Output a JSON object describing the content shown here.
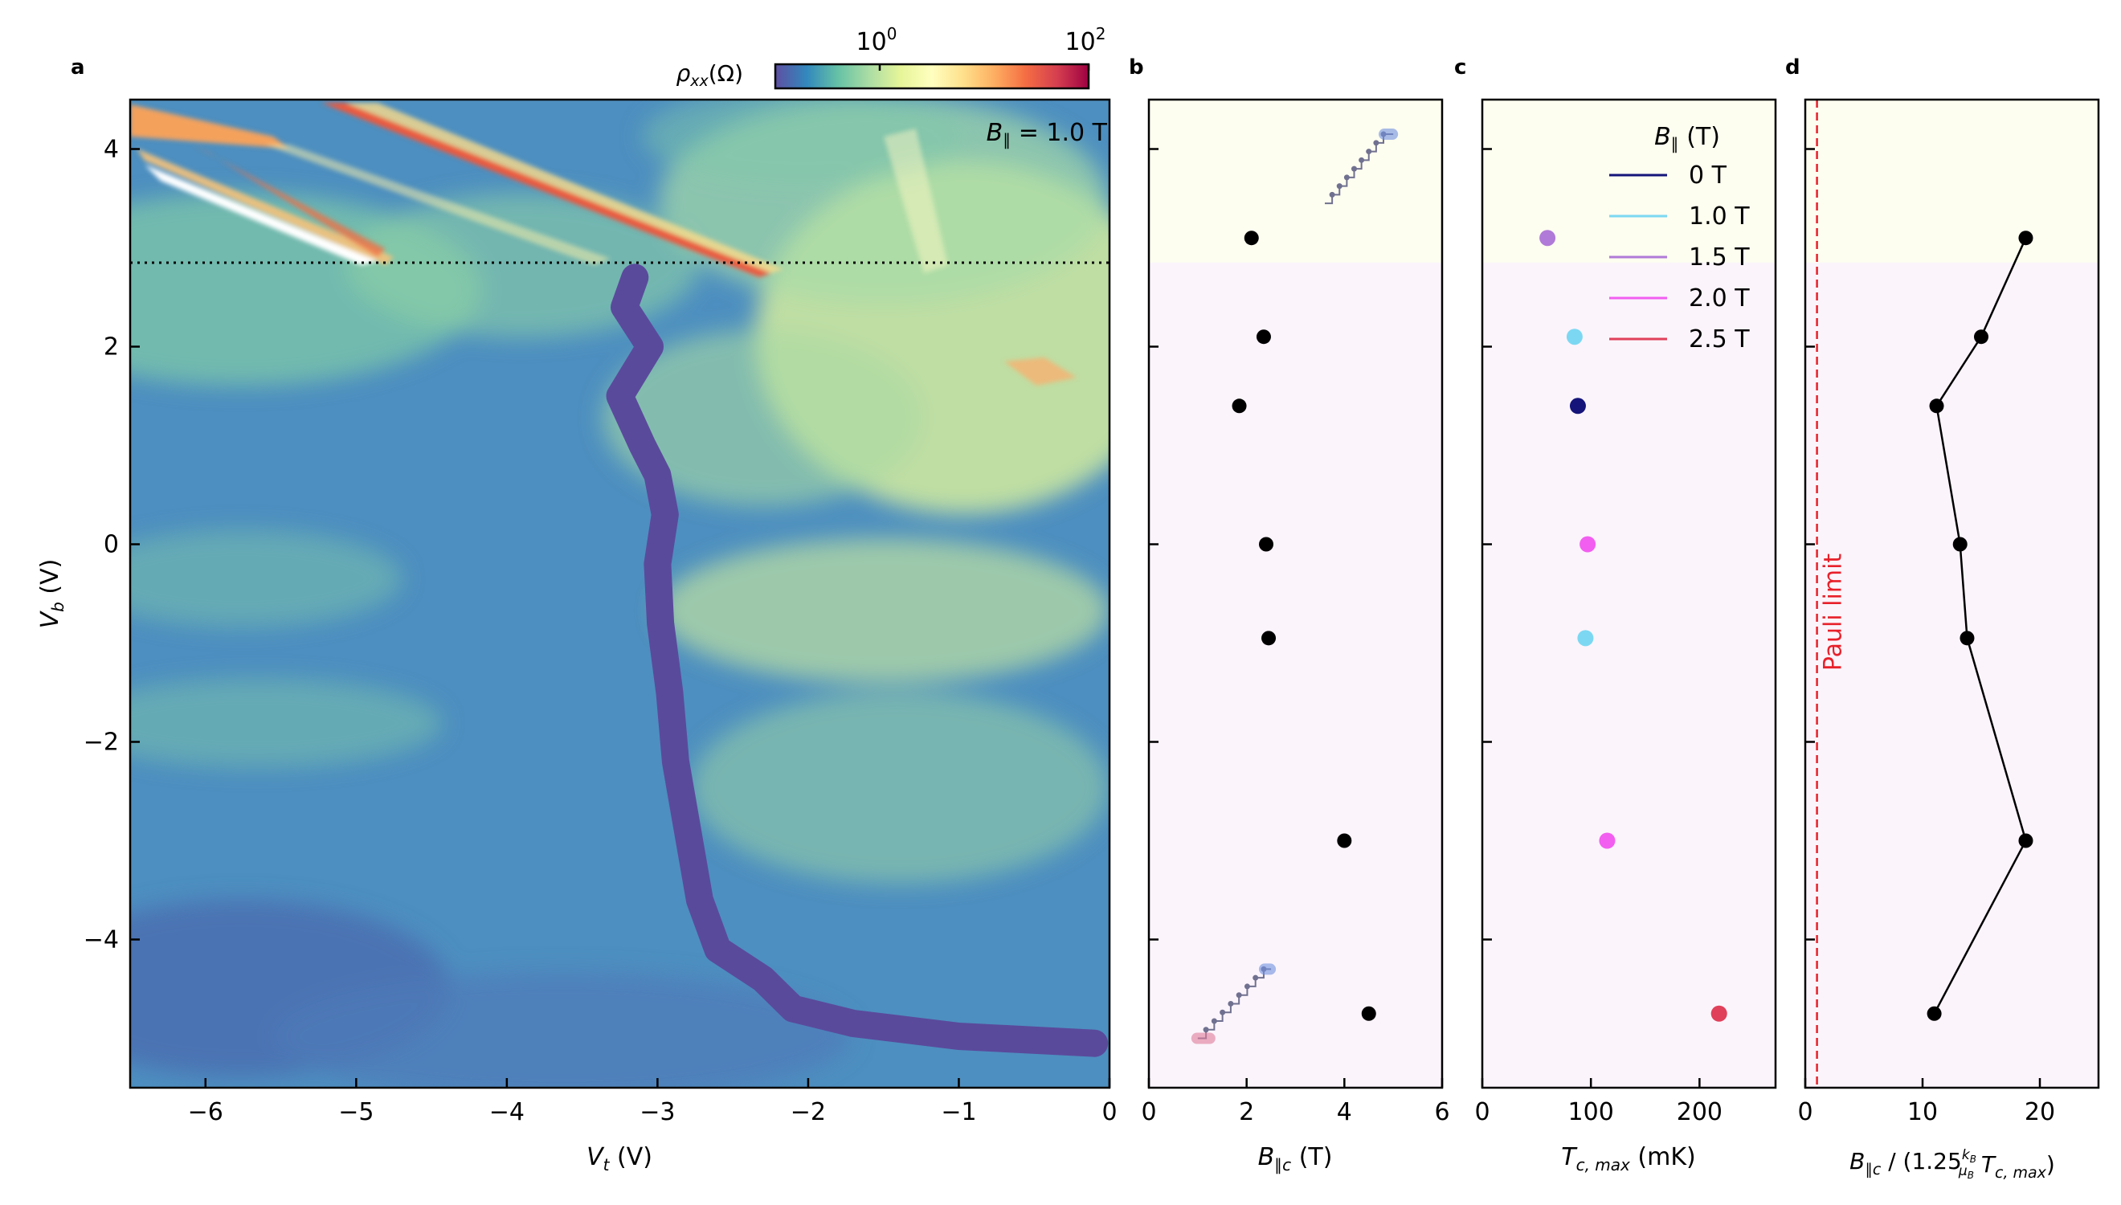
{
  "figure": {
    "panel_labels": [
      "a",
      "b",
      "c",
      "d"
    ],
    "colorbar": {
      "label": "ρ",
      "label_sub": "xx",
      "label_unit": "(Ω)",
      "tick_base": "10",
      "ticks": [
        {
          "exp": "0",
          "value": 1
        },
        {
          "exp": "2",
          "value": 100
        }
      ],
      "range_log10": [
        -1,
        2
      ],
      "colormap": [
        "#5e4fa2",
        "#3288bd",
        "#66c2a5",
        "#abdda4",
        "#e6f598",
        "#ffffbf",
        "#fee08b",
        "#fdae61",
        "#f46d43",
        "#d53e4f",
        "#9e0142"
      ]
    },
    "annotation": {
      "symbol": "B",
      "sub": "∥",
      "text": " = 1.0 T"
    },
    "shading": {
      "upper_color": "#fdfdf0",
      "lower_color": "#fbf4fb",
      "boundary_vb": 2.85
    }
  },
  "chart_data": [
    {
      "panel": "a",
      "type": "heatmap",
      "xlabel": "V",
      "xlabel_sub": "t",
      "xlabel_unit": " (V)",
      "ylabel": "V",
      "ylabel_sub": "b",
      "ylabel_unit": " (V)",
      "xlim": [
        -6.5,
        0
      ],
      "ylim": [
        -5.5,
        4.5
      ],
      "xticks": [
        -6,
        -5,
        -4,
        -3,
        -2,
        -1,
        0
      ],
      "xtick_labels": [
        "−6",
        "−5",
        "−4",
        "−3",
        "−2",
        "−1",
        "0"
      ],
      "yticks": [
        -4,
        -2,
        0,
        2,
        4
      ],
      "ytick_labels": [
        "−4",
        "−2",
        "0",
        "2",
        "4"
      ],
      "dotted_line_vb": 2.85,
      "superconducting_channel": [
        [
          -3.15,
          2.7
        ],
        [
          -3.22,
          2.4
        ],
        [
          -3.05,
          2.0
        ],
        [
          -3.25,
          1.5
        ],
        [
          -3.1,
          1.0
        ],
        [
          -3.0,
          0.7
        ],
        [
          -2.95,
          0.3
        ],
        [
          -3.0,
          -0.2
        ],
        [
          -2.98,
          -0.8
        ],
        [
          -2.92,
          -1.5
        ],
        [
          -2.88,
          -2.2
        ],
        [
          -2.8,
          -2.9
        ],
        [
          -2.72,
          -3.6
        ],
        [
          -2.6,
          -4.1
        ],
        [
          -2.3,
          -4.4
        ],
        [
          -2.1,
          -4.7
        ],
        [
          -1.7,
          -4.85
        ],
        [
          -1.0,
          -4.98
        ],
        [
          -0.1,
          -5.05
        ]
      ]
    },
    {
      "panel": "b",
      "type": "scatter",
      "xlabel": "B",
      "xlabel_sub": "∥c",
      "xlabel_unit": " (T)",
      "xlim": [
        0,
        6
      ],
      "xticks": [
        0,
        2,
        4,
        6
      ],
      "xtick_labels": [
        "0",
        "2",
        "4",
        "6"
      ],
      "ylim": [
        -5.5,
        4.5
      ],
      "points": [
        {
          "x": 2.1,
          "y": 3.1
        },
        {
          "x": 2.35,
          "y": 2.1
        },
        {
          "x": 1.85,
          "y": 1.4
        },
        {
          "x": 2.4,
          "y": 0.0
        },
        {
          "x": 2.45,
          "y": -0.95
        },
        {
          "x": 4.0,
          "y": -3.0
        },
        {
          "x": 4.5,
          "y": -4.75
        }
      ],
      "insets": [
        {
          "x0": 3.6,
          "y0": 3.45,
          "x1": 4.8,
          "y1": 4.15,
          "end_x": 5.0,
          "end_y": 4.15,
          "end_color": "#6f8fe0"
        },
        {
          "x0": 1.0,
          "y0": -5.0,
          "x1": 2.35,
          "y1": -4.3,
          "end_x": 2.5,
          "end_y": -4.3,
          "end_color": "#6f8fe0",
          "start_color": "#e07a9a"
        }
      ]
    },
    {
      "panel": "c",
      "type": "scatter",
      "xlabel": "T",
      "xlabel_sub": "c, max",
      "xlabel_unit": " (mK)",
      "xlim": [
        0,
        270
      ],
      "xticks": [
        0,
        100,
        200
      ],
      "xtick_labels": [
        "0",
        "100",
        "200"
      ],
      "ylim": [
        -5.5,
        4.5
      ],
      "legend_title": "B",
      "legend_title_sub": "∥",
      "legend_title_unit": " (T)",
      "series": [
        {
          "name": "0 T",
          "color": "#14147a"
        },
        {
          "name": "1.0 T",
          "color": "#7cd8f2"
        },
        {
          "name": "1.5 T",
          "color": "#b07ad8"
        },
        {
          "name": "2.0 T",
          "color": "#f25ef0"
        },
        {
          "name": "2.5 T",
          "color": "#e0405a"
        }
      ],
      "points": [
        {
          "x": 60,
          "y": 3.1,
          "series": 2
        },
        {
          "x": 85,
          "y": 2.1,
          "series": 1
        },
        {
          "x": 88,
          "y": 1.4,
          "series": 0
        },
        {
          "x": 97,
          "y": 0.0,
          "series": 3
        },
        {
          "x": 95,
          "y": -0.95,
          "series": 1
        },
        {
          "x": 115,
          "y": -3.0,
          "series": 3
        },
        {
          "x": 218,
          "y": -4.75,
          "series": 4
        }
      ]
    },
    {
      "panel": "d",
      "type": "line",
      "xlabel_parts": {
        "b": "B",
        "b_sub": "∥c",
        "mid": " / (1.25",
        "frac_num": "k",
        "frac_num_sub": "B",
        "frac_den": "μ",
        "frac_den_sub": "B",
        "t": " T",
        "t_sub": "c, max",
        "close": ")"
      },
      "xlim": [
        0,
        25
      ],
      "xticks": [
        0,
        10,
        20
      ],
      "xtick_labels": [
        "0",
        "10",
        "20"
      ],
      "ylim": [
        -5.5,
        4.5
      ],
      "pauli_limit_x": 1.0,
      "pauli_label": "Pauli limit",
      "pauli_color": "#e8202a",
      "points": [
        {
          "x": 18.8,
          "y": 3.1
        },
        {
          "x": 15.0,
          "y": 2.1
        },
        {
          "x": 11.2,
          "y": 1.4
        },
        {
          "x": 13.2,
          "y": 0.0
        },
        {
          "x": 13.8,
          "y": -0.95
        },
        {
          "x": 18.8,
          "y": -3.0
        },
        {
          "x": 11.0,
          "y": -4.75
        }
      ]
    }
  ]
}
